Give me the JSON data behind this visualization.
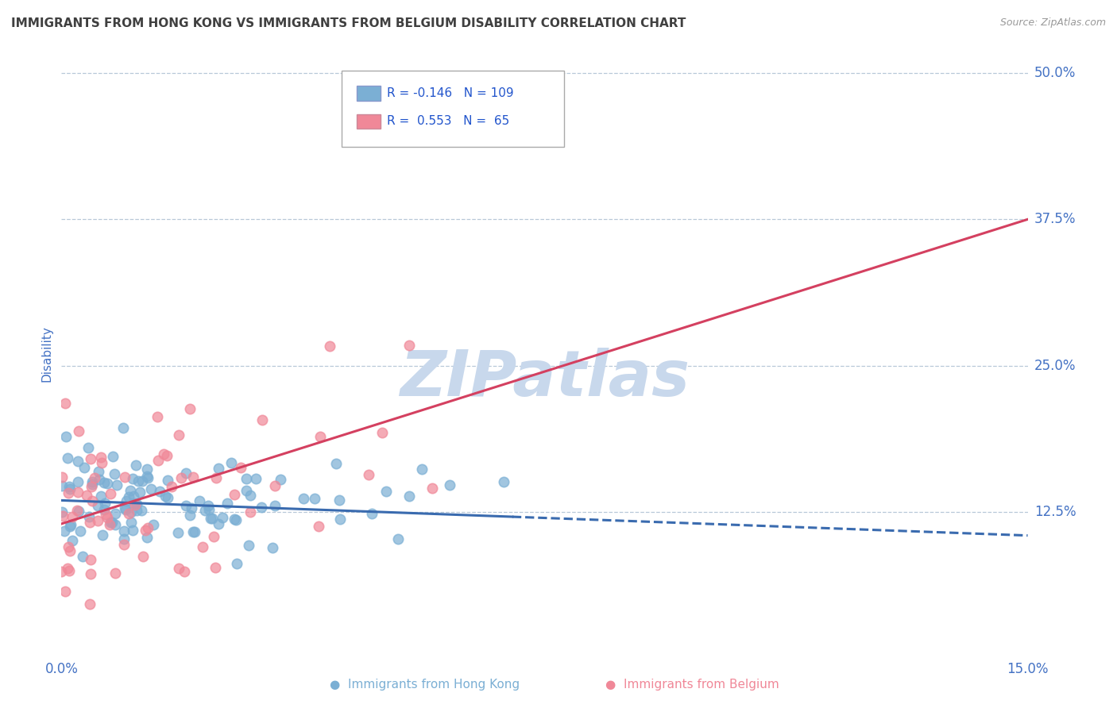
{
  "title": "IMMIGRANTS FROM HONG KONG VS IMMIGRANTS FROM BELGIUM DISABILITY CORRELATION CHART",
  "source": "Source: ZipAtlas.com",
  "ylabel": "Disability",
  "xlim": [
    0.0,
    0.15
  ],
  "ylim": [
    0.0,
    0.52
  ],
  "xticks": [
    0.0,
    0.025,
    0.05,
    0.075,
    0.1,
    0.125,
    0.15
  ],
  "xticklabels": [
    "0.0%",
    "",
    "",
    "",
    "",
    "",
    "15.0%"
  ],
  "yticks": [
    0.0,
    0.125,
    0.25,
    0.375,
    0.5
  ],
  "yticklabels": [
    "",
    "12.5%",
    "25.0%",
    "37.5%",
    "50.0%"
  ],
  "legend_R1": "-0.146",
  "legend_N1": "109",
  "legend_R2": "0.553",
  "legend_N2": "65",
  "color_hk": "#7bafd4",
  "color_be": "#f08898",
  "line_color_hk": "#3a6baf",
  "line_color_be": "#d44060",
  "watermark": "ZIPatlas",
  "watermark_color": "#c8d8ec",
  "background_color": "#ffffff",
  "grid_color": "#b8c8d8",
  "title_color": "#404040",
  "axis_label_color": "#4472c4",
  "n_hk": 109,
  "n_be": 65,
  "R_hk": -0.146,
  "R_be": 0.553,
  "be_trend_x0": 0.0,
  "be_trend_y0": 0.115,
  "be_trend_x1": 0.15,
  "be_trend_y1": 0.375,
  "hk_trend_x0": 0.0,
  "hk_trend_y0": 0.135,
  "hk_trend_x1": 0.15,
  "hk_trend_y1": 0.105
}
